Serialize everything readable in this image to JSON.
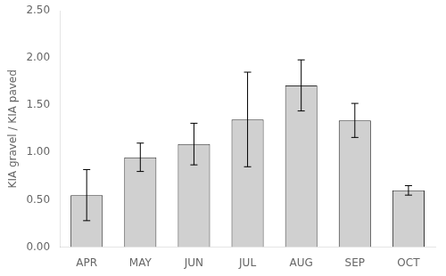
{
  "chart_data": {
    "type": "bar",
    "categories": [
      "APR",
      "MAY",
      "JUN",
      "JUL",
      "AUG",
      "SEP",
      "OCT"
    ],
    "values": [
      0.55,
      0.95,
      1.09,
      1.35,
      1.71,
      1.34,
      0.6
    ],
    "errors": [
      0.27,
      0.15,
      0.22,
      0.5,
      0.27,
      0.18,
      0.05
    ],
    "color": "#d0d0d0",
    "ylabel": "KIA gravel / KIA paved",
    "ylim": [
      0.0,
      2.5
    ],
    "yticks": [
      {
        "value": 0,
        "label": "0.00"
      },
      {
        "value": 0.5,
        "label": "0.50"
      },
      {
        "value": 1,
        "label": "1.00"
      },
      {
        "value": 1.5,
        "label": "1.50"
      },
      {
        "value": 2,
        "label": "2.00"
      },
      {
        "value": 2.5,
        "label": "2.50"
      }
    ],
    "grid": false
  }
}
